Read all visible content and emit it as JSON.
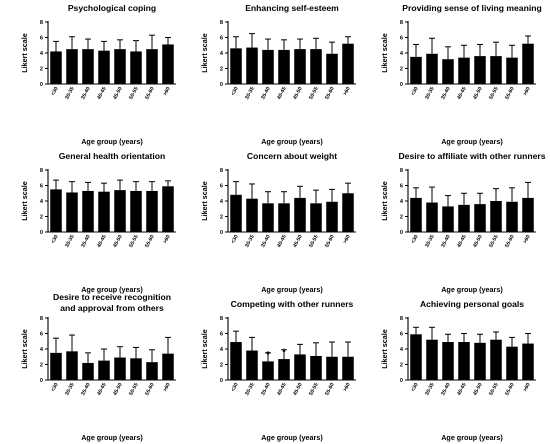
{
  "chart_data": [
    {
      "type": "bar",
      "title": "Psychological coping",
      "xlabel": "Age group (years)",
      "ylabel": "Likert scale",
      "ylim": [
        0,
        8
      ],
      "yticks": [
        "0",
        "2",
        "4",
        "6",
        "8"
      ],
      "categories": [
        "<30",
        "30-35",
        "35-40",
        "40-45",
        "45-50",
        "50-55",
        "55-60",
        ">60"
      ],
      "values": [
        4.2,
        4.5,
        4.5,
        4.3,
        4.5,
        4.2,
        4.5,
        5.1
      ],
      "errors": [
        1.3,
        1.6,
        1.3,
        1.2,
        1.2,
        1.4,
        1.8,
        0.9
      ]
    },
    {
      "type": "bar",
      "title": "Enhancing self-esteem",
      "xlabel": "Age group (years)",
      "ylabel": "Likert scale",
      "ylim": [
        0,
        8
      ],
      "yticks": [
        "0",
        "2",
        "4",
        "6",
        "8"
      ],
      "categories": [
        "<30",
        "30-35",
        "35-40",
        "40-45",
        "45-50",
        "50-55",
        "55-60",
        ">60"
      ],
      "values": [
        4.6,
        4.7,
        4.4,
        4.4,
        4.5,
        4.5,
        3.9,
        5.2
      ],
      "errors": [
        1.5,
        1.8,
        1.4,
        1.3,
        1.3,
        1.4,
        1.5,
        0.9
      ]
    },
    {
      "type": "bar",
      "title": "Providing sense of living meaning",
      "xlabel": "Age group (years)",
      "ylabel": "Likert scale",
      "ylim": [
        0,
        8
      ],
      "yticks": [
        "0",
        "2",
        "4",
        "6",
        "8"
      ],
      "categories": [
        "<30",
        "30-35",
        "35-40",
        "40-45",
        "45-50",
        "50-55",
        "55-60",
        ">60"
      ],
      "values": [
        3.5,
        3.9,
        3.2,
        3.4,
        3.6,
        3.6,
        3.4,
        5.2
      ],
      "errors": [
        1.6,
        2.0,
        1.6,
        1.6,
        1.5,
        1.8,
        1.6,
        1.0
      ]
    },
    {
      "type": "bar",
      "title": "General health orientation",
      "xlabel": "Age group (years)",
      "ylabel": "Likert scale",
      "ylim": [
        0,
        8
      ],
      "yticks": [
        "0",
        "2",
        "4",
        "6",
        "8"
      ],
      "categories": [
        "<30",
        "30-35",
        "35-40",
        "40-45",
        "45-50",
        "50-55",
        "55-60",
        ">60"
      ],
      "values": [
        5.5,
        5.1,
        5.3,
        5.2,
        5.4,
        5.3,
        5.3,
        5.9
      ],
      "errors": [
        1.2,
        1.4,
        1.1,
        1.1,
        1.3,
        1.2,
        1.2,
        0.7
      ]
    },
    {
      "type": "bar",
      "title": "Concern about weight",
      "xlabel": "Age group (years)",
      "ylabel": "Likert scale",
      "ylim": [
        0,
        8
      ],
      "yticks": [
        "0",
        "2",
        "4",
        "6",
        "8"
      ],
      "categories": [
        "<30",
        "30-35",
        "35-40",
        "40-45",
        "45-50",
        "50-55",
        "55-60",
        ">60"
      ],
      "values": [
        4.8,
        4.3,
        3.7,
        3.7,
        4.4,
        3.7,
        3.9,
        5.0
      ],
      "errors": [
        1.7,
        1.9,
        1.5,
        1.5,
        1.5,
        1.7,
        1.6,
        1.3
      ]
    },
    {
      "type": "bar",
      "title": "Desire to affiliate with other runners",
      "xlabel": "Age group (years)",
      "ylabel": "Likert scale",
      "ylim": [
        0,
        8
      ],
      "yticks": [
        "0",
        "2",
        "4",
        "6",
        "8"
      ],
      "categories": [
        "<30",
        "30-35",
        "35-40",
        "40-45",
        "45-50",
        "50-55",
        "55-60",
        ">60"
      ],
      "values": [
        4.4,
        3.8,
        3.3,
        3.5,
        3.6,
        4.0,
        3.9,
        4.4
      ],
      "errors": [
        1.3,
        2.0,
        1.4,
        1.5,
        1.4,
        1.6,
        1.8,
        2.0
      ]
    },
    {
      "type": "bar",
      "title": "Desire to receive recognition and approval from others",
      "title_lines": [
        "Desire to receive recognition",
        "and approval from others"
      ],
      "xlabel": "Age group (years)",
      "ylabel": "Likert scale",
      "ylim": [
        0,
        8
      ],
      "yticks": [
        "0",
        "2",
        "4",
        "6",
        "8"
      ],
      "categories": [
        "<30",
        "30-35",
        "35-40",
        "40-45",
        "45-50",
        "50-55",
        "55-60",
        ">60"
      ],
      "values": [
        3.5,
        3.7,
        2.2,
        2.5,
        2.9,
        2.8,
        2.3,
        3.4
      ],
      "errors": [
        1.9,
        2.1,
        1.3,
        1.5,
        1.4,
        1.4,
        1.6,
        2.1
      ]
    },
    {
      "type": "bar",
      "title": "Competing with other runners",
      "xlabel": "Age group (years)",
      "ylabel": "Likert scale",
      "ylim": [
        0,
        8
      ],
      "yticks": [
        "0",
        "2",
        "4",
        "6",
        "8"
      ],
      "categories": [
        "<30",
        "30-35",
        "35-40",
        "40-45",
        "45-50",
        "50-55",
        "55-60",
        ">60"
      ],
      "values": [
        4.9,
        3.8,
        2.4,
        2.7,
        3.3,
        3.1,
        3.0,
        3.0
      ],
      "errors": [
        1.4,
        1.7,
        1.1,
        1.2,
        1.3,
        1.7,
        1.9,
        1.9
      ],
      "annotations": [
        {
          "category": "35-40",
          "text": "*"
        },
        {
          "category": "40-45",
          "text": "*"
        }
      ]
    },
    {
      "type": "bar",
      "title": "Achieving personal goals",
      "xlabel": "Age group (years)",
      "ylabel": "Likert scale",
      "ylim": [
        0,
        8
      ],
      "yticks": [
        "0",
        "2",
        "4",
        "6",
        "8"
      ],
      "categories": [
        "<30",
        "30-35",
        "35-40",
        "40-45",
        "45-50",
        "50-55",
        "55-60",
        ">60"
      ],
      "values": [
        5.9,
        5.2,
        4.9,
        4.9,
        4.8,
        5.2,
        4.3,
        4.7
      ],
      "errors": [
        0.9,
        1.6,
        1.0,
        1.1,
        1.1,
        1.0,
        1.2,
        1.3
      ]
    }
  ]
}
